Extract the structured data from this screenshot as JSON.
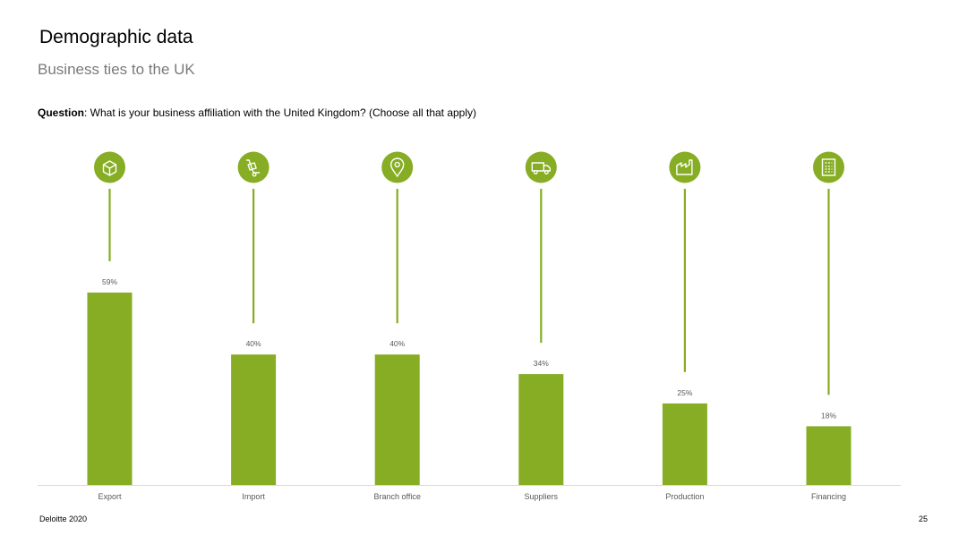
{
  "page": {
    "title": "Demographic data",
    "subtitle": "Business ties to the UK",
    "question_label": "Question",
    "question_text": ": What is your business affiliation with the United Kingdom? (Choose all that apply)",
    "footer_left": "Deloitte 2020",
    "page_number": "25"
  },
  "colors": {
    "bar": "#86AD24",
    "icon_circle": "#86AD24",
    "axis": "#d9d9d9",
    "label": "#595959"
  },
  "chart_data": {
    "type": "bar",
    "categories": [
      "Export",
      "Import",
      "Branch office",
      "Suppliers",
      "Production",
      "Financing"
    ],
    "values": [
      59,
      40,
      40,
      34,
      25,
      18
    ],
    "value_labels": [
      "59%",
      "40%",
      "40%",
      "34%",
      "25%",
      "18%"
    ],
    "icons": [
      "package-icon",
      "hand-truck-icon",
      "location-pin-icon",
      "delivery-truck-icon",
      "factory-icon",
      "calculator-icon"
    ],
    "ylim": [
      0,
      59
    ],
    "grid": false,
    "legend": "none"
  }
}
